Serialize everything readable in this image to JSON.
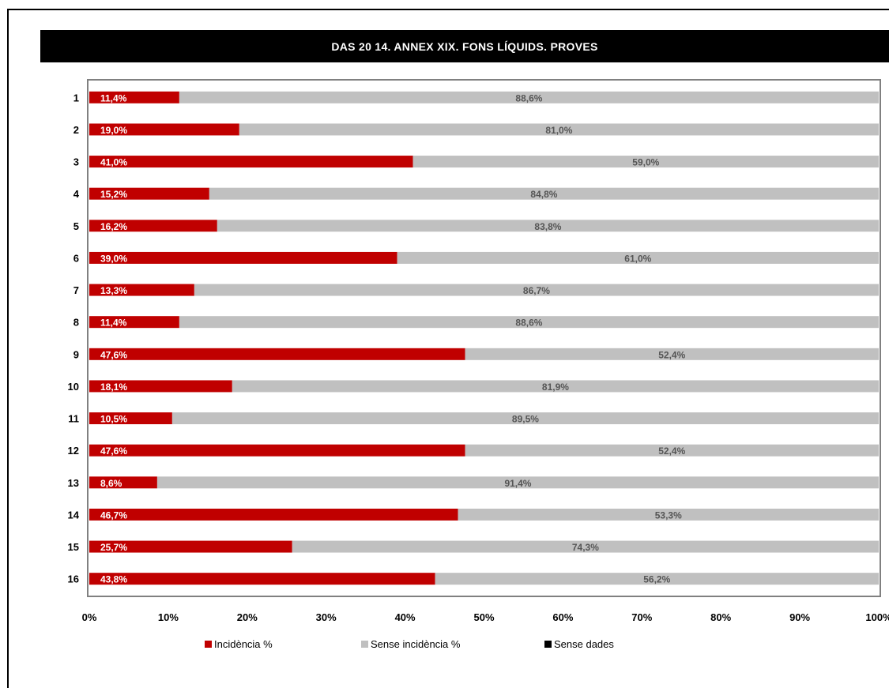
{
  "chart_data": {
    "type": "bar",
    "orientation": "horizontal",
    "stacked": true,
    "title": "DAS 20 14. ANNEX XIX. FONS LÍQUIDS. PROVES",
    "categories": [
      "1",
      "2",
      "3",
      "4",
      "5",
      "6",
      "7",
      "8",
      "9",
      "10",
      "11",
      "12",
      "13",
      "14",
      "15",
      "16"
    ],
    "series": [
      {
        "name": "Incidència %",
        "color": "#c00000",
        "values": [
          11.4,
          19.0,
          41.0,
          15.2,
          16.2,
          39.0,
          13.3,
          11.4,
          47.6,
          18.1,
          10.5,
          47.6,
          8.6,
          46.7,
          25.7,
          43.8
        ],
        "labels": [
          "11,4%",
          "19,0%",
          "41,0%",
          "15,2%",
          "16,2%",
          "39,0%",
          "13,3%",
          "11,4%",
          "47,6%",
          "18,1%",
          "10,5%",
          "47,6%",
          "8,6%",
          "46,7%",
          "25,7%",
          "43,8%"
        ]
      },
      {
        "name": "Sense incidència %",
        "color": "#c0c0c0",
        "values": [
          88.6,
          81.0,
          59.0,
          84.8,
          83.8,
          61.0,
          86.7,
          88.6,
          52.4,
          81.9,
          89.5,
          52.4,
          91.4,
          53.3,
          74.3,
          56.2
        ],
        "labels": [
          "88,6%",
          "81,0%",
          "59,0%",
          "84,8%",
          "83,8%",
          "61,0%",
          "86,7%",
          "88,6%",
          "52,4%",
          "81,9%",
          "89,5%",
          "52,4%",
          "91,4%",
          "53,3%",
          "74,3%",
          "56,2%"
        ]
      },
      {
        "name": "Sense dades",
        "color": "#000000",
        "values": [
          0,
          0,
          0,
          0,
          0,
          0,
          0,
          0,
          0,
          0,
          0,
          0,
          0,
          0,
          0,
          0
        ]
      }
    ],
    "xlim": [
      0,
      100
    ],
    "x_ticks": [
      "0%",
      "10%",
      "20%",
      "30%",
      "40%",
      "50%",
      "60%",
      "70%",
      "80%",
      "90%",
      "100%"
    ],
    "grid": false,
    "legend_position": "bottom"
  }
}
